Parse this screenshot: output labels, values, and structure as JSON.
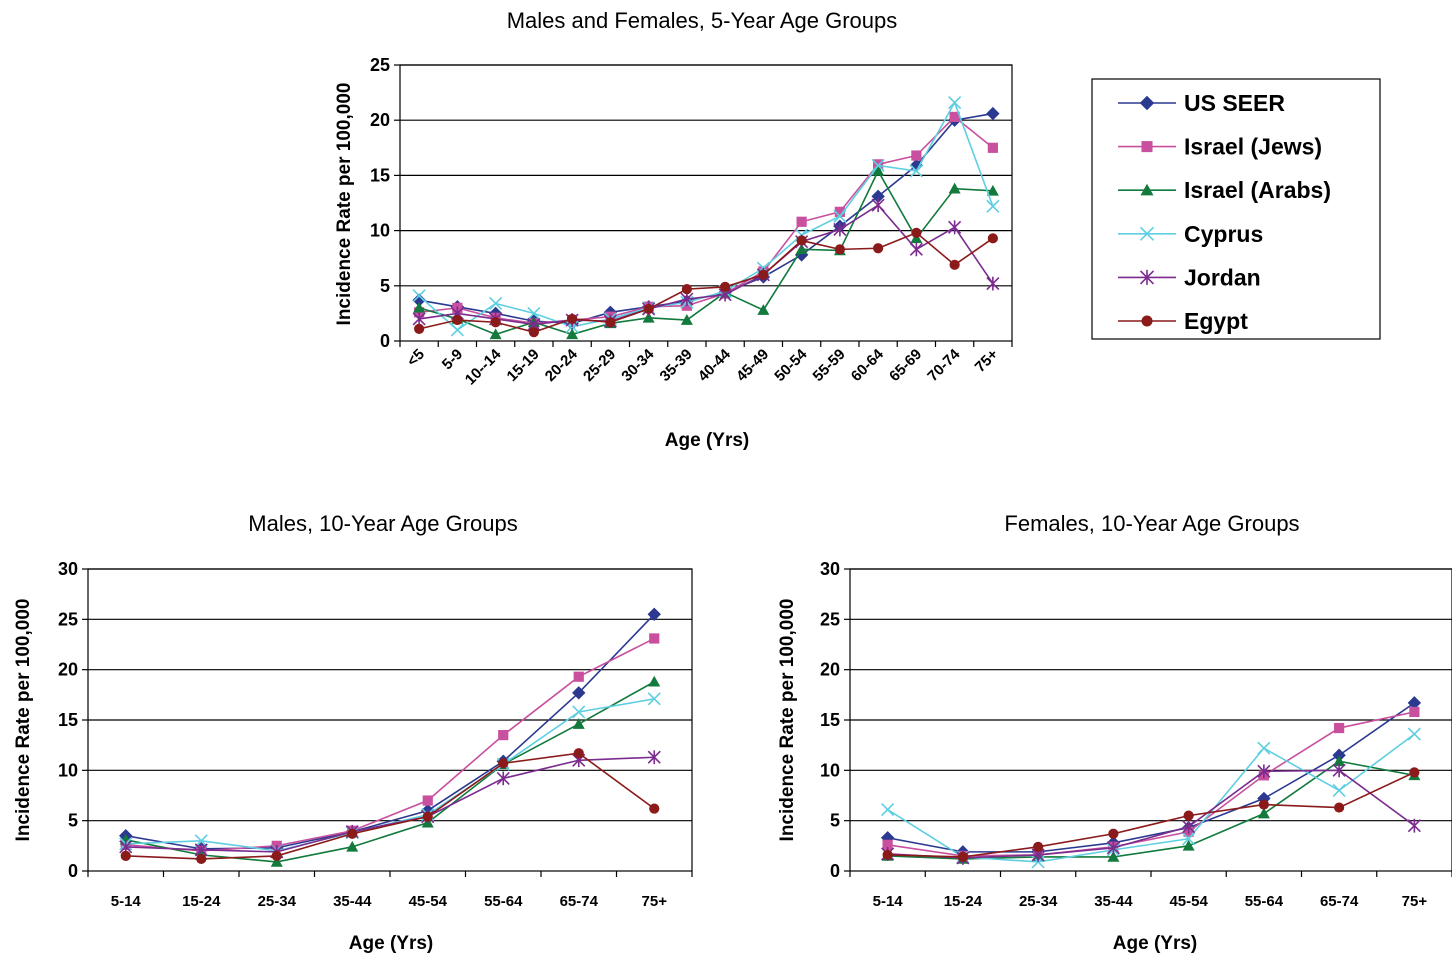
{
  "legend": {
    "entries": [
      "US SEER",
      "Israel (Jews)",
      "Israel (Arabs)",
      "Cyprus",
      "Jordan",
      "Egypt"
    ]
  },
  "series_styles": [
    {
      "name": "US SEER",
      "color": "#2B3990",
      "marker": "diamond"
    },
    {
      "name": "Israel (Jews)",
      "color": "#C8509E",
      "marker": "square"
    },
    {
      "name": "Israel (Arabs)",
      "color": "#117A3C",
      "marker": "triangle"
    },
    {
      "name": "Cyprus",
      "color": "#5ECFE0",
      "marker": "x"
    },
    {
      "name": "Jordan",
      "color": "#7B2C8E",
      "marker": "star"
    },
    {
      "name": "Egypt",
      "color": "#8B1A1A",
      "marker": "circle"
    }
  ],
  "chart_data": [
    {
      "type": "line",
      "title": "Males and Females, 5-Year Age Groups",
      "xlabel": "Age (Yrs)",
      "ylabel": "Incidence Rate per 100,000",
      "ylim": [
        0,
        25
      ],
      "yticks": [
        0,
        5,
        10,
        15,
        20,
        25
      ],
      "grid": true,
      "legend_position": "right",
      "categories": [
        "<5",
        "5-9",
        "10--14",
        "15-19",
        "20-24",
        "25-29",
        "30-34",
        "35-39",
        "40-44",
        "45-49",
        "50-54",
        "55-59",
        "60-64",
        "65-69",
        "70-74",
        "75+"
      ],
      "series": [
        {
          "name": "US SEER",
          "values": [
            3.7,
            3.1,
            2.5,
            1.8,
            1.6,
            2.6,
            3.1,
            3.6,
            4.4,
            5.8,
            7.8,
            10.4,
            13.1,
            15.9,
            20.0,
            20.6
          ]
        },
        {
          "name": "Israel (Jews)",
          "values": [
            2.6,
            3.0,
            2.1,
            1.6,
            1.9,
            2.2,
            3.1,
            3.2,
            4.3,
            6.3,
            10.8,
            11.7,
            16.0,
            16.8,
            20.3,
            17.5
          ]
        },
        {
          "name": "Israel (Arabs)",
          "values": [
            3.0,
            2.0,
            0.6,
            1.7,
            0.6,
            1.6,
            2.1,
            1.9,
            4.4,
            2.8,
            8.3,
            8.2,
            15.4,
            9.3,
            13.8,
            13.6
          ]
        },
        {
          "name": "Cyprus",
          "values": [
            4.1,
            1.0,
            3.4,
            2.5,
            1.3,
            2.0,
            3.0,
            3.5,
            4.5,
            6.6,
            9.6,
            11.3,
            15.9,
            15.4,
            21.6,
            12.2
          ]
        },
        {
          "name": "Jordan",
          "values": [
            2.0,
            2.5,
            2.0,
            1.5,
            1.9,
            1.8,
            2.9,
            3.8,
            4.2,
            6.0,
            9.0,
            10.1,
            12.3,
            8.3,
            10.3,
            5.2
          ]
        },
        {
          "name": "Egypt",
          "values": [
            1.1,
            1.9,
            1.7,
            0.8,
            2.0,
            1.7,
            2.9,
            4.7,
            4.9,
            6.0,
            9.1,
            8.3,
            8.4,
            9.8,
            6.9,
            9.3
          ]
        }
      ]
    },
    {
      "type": "line",
      "title": "Males, 10-Year Age Groups",
      "xlabel": "Age (Yrs)",
      "ylabel": "Incidence Rate per 100,000",
      "ylim": [
        0,
        30
      ],
      "yticks": [
        0,
        5,
        10,
        15,
        20,
        25,
        30
      ],
      "grid": true,
      "categories": [
        "5-14",
        "15-24",
        "25-34",
        "35-44",
        "45-54",
        "55-64",
        "65-74",
        "75+"
      ],
      "series": [
        {
          "name": "US SEER",
          "values": [
            3.5,
            2.2,
            2.3,
            3.9,
            6.0,
            10.9,
            17.7,
            25.5
          ]
        },
        {
          "name": "Israel (Jews)",
          "values": [
            2.6,
            2.0,
            2.5,
            4.0,
            7.0,
            13.5,
            19.3,
            23.1
          ]
        },
        {
          "name": "Israel (Arabs)",
          "values": [
            3.1,
            1.6,
            0.9,
            2.4,
            4.8,
            10.6,
            14.6,
            18.8
          ]
        },
        {
          "name": "Cyprus",
          "values": [
            2.7,
            3.0,
            2.0,
            3.8,
            5.6,
            10.6,
            15.8,
            17.1
          ]
        },
        {
          "name": "Jordan",
          "values": [
            2.4,
            2.1,
            1.9,
            3.9,
            5.4,
            9.2,
            11.0,
            11.3
          ]
        },
        {
          "name": "Egypt",
          "values": [
            1.5,
            1.2,
            1.5,
            3.7,
            5.4,
            10.7,
            11.7,
            6.2
          ]
        }
      ]
    },
    {
      "type": "line",
      "title": "Females, 10-Year Age Groups",
      "xlabel": "Age (Yrs)",
      "ylabel": "Incidence Rate per 100,000",
      "ylim": [
        0,
        30
      ],
      "yticks": [
        0,
        5,
        10,
        15,
        20,
        25,
        30
      ],
      "grid": true,
      "categories": [
        "5-14",
        "15-24",
        "25-34",
        "35-44",
        "45-54",
        "55-64",
        "65-74",
        "75+"
      ],
      "series": [
        {
          "name": "US SEER",
          "values": [
            3.3,
            1.9,
            1.9,
            2.8,
            4.3,
            7.2,
            11.5,
            16.7
          ]
        },
        {
          "name": "Israel (Jews)",
          "values": [
            2.6,
            1.5,
            1.6,
            2.4,
            3.9,
            9.5,
            14.2,
            15.8
          ]
        },
        {
          "name": "Israel (Arabs)",
          "values": [
            1.5,
            1.2,
            1.4,
            1.4,
            2.5,
            5.7,
            10.9,
            9.5
          ]
        },
        {
          "name": "Cyprus",
          "values": [
            6.1,
            1.4,
            0.9,
            2.1,
            3.2,
            12.2,
            8.0,
            13.6
          ]
        },
        {
          "name": "Jordan",
          "values": [
            1.7,
            1.3,
            1.6,
            2.3,
            4.4,
            9.9,
            10.0,
            4.5
          ]
        },
        {
          "name": "Egypt",
          "values": [
            1.6,
            1.4,
            2.4,
            3.7,
            5.5,
            6.6,
            6.3,
            9.8
          ]
        }
      ]
    }
  ]
}
